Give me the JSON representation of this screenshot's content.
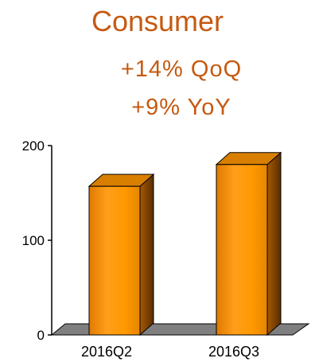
{
  "header": {
    "title": "Consumer",
    "qoq": "+14%  QoQ",
    "yoy": "+9%  YoY"
  },
  "colors": {
    "title_text": "#C55A11",
    "bar_front": "#FF9900",
    "bar_side": "#8C4A00",
    "bar_top": "#D97F00",
    "floor": "#7F7F7F"
  },
  "chart_data": {
    "type": "bar",
    "style": "3d-column",
    "categories": [
      "2016Q2",
      "2016Q3"
    ],
    "values": [
      157,
      180
    ],
    "ylim": [
      0,
      200
    ],
    "yticks": [
      0,
      100,
      200
    ],
    "title": "",
    "xlabel": "",
    "ylabel": "",
    "grid": false,
    "legend": "none"
  }
}
